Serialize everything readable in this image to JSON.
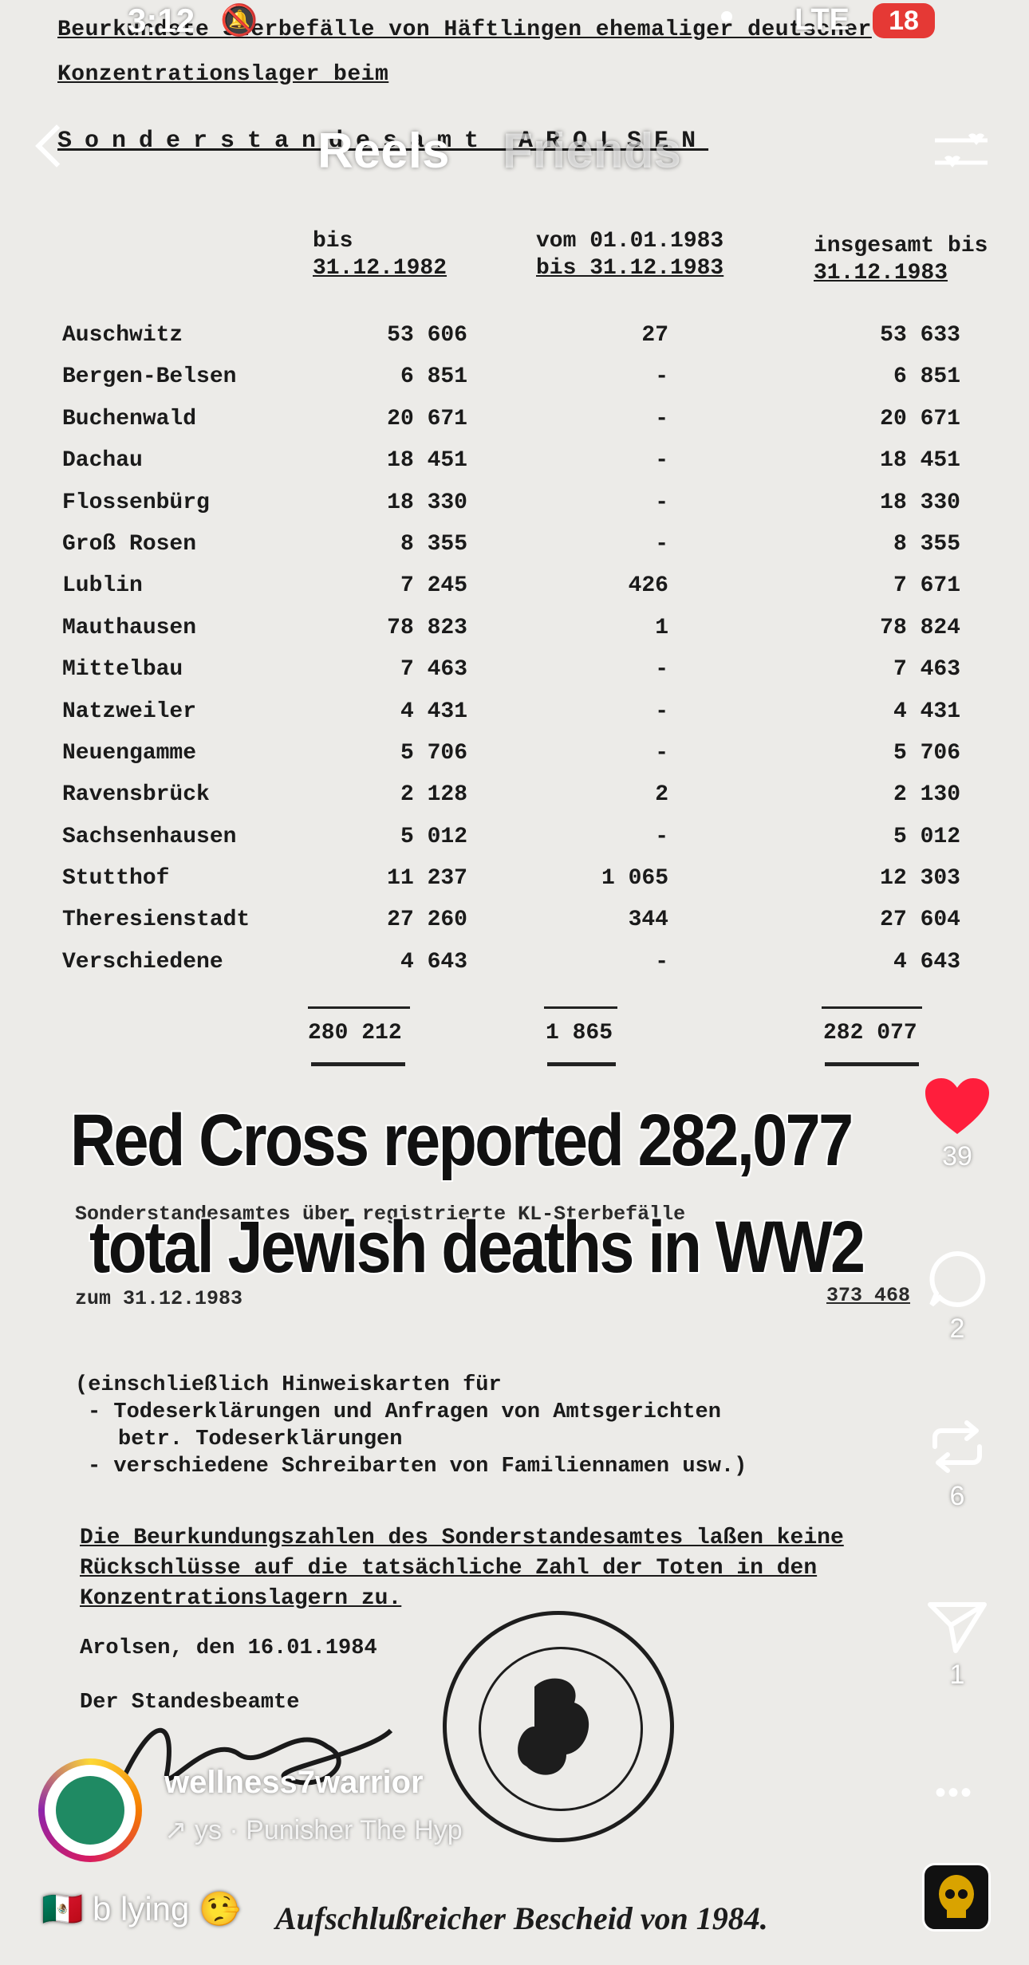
{
  "status_bar": {
    "time": "3:12",
    "network": "LTE",
    "battery": "18",
    "battery_color": "#e53935"
  },
  "nav": {
    "tab_reels": "Reels",
    "tab_friends": "Friends"
  },
  "document": {
    "header_line1": "Beurkundete Sterbefälle von Häftlingen ehemaliger deutscher",
    "header_line2": "Konzentrationslager beim",
    "header_line3": "Sonderstandesamt AROLSEN",
    "col_a": [
      "bis",
      "31.12.1982"
    ],
    "col_b": [
      "vom 01.01.1983",
      "bis 31.12.1983"
    ],
    "col_c": [
      "insgesamt bis",
      "31.12.1983"
    ],
    "rows": [
      {
        "name": "Auschwitz",
        "a": "53 606",
        "b": "27",
        "c": "53 633"
      },
      {
        "name": "Bergen-Belsen",
        "a": "6 851",
        "b": "-",
        "c": "6 851"
      },
      {
        "name": "Buchenwald",
        "a": "20 671",
        "b": "-",
        "c": "20 671"
      },
      {
        "name": "Dachau",
        "a": "18 451",
        "b": "-",
        "c": "18 451"
      },
      {
        "name": "Flossenbürg",
        "a": "18 330",
        "b": "-",
        "c": "18 330"
      },
      {
        "name": "Groß Rosen",
        "a": "8 355",
        "b": "-",
        "c": "8 355"
      },
      {
        "name": "Lublin",
        "a": "7 245",
        "b": "426",
        "c": "7 671"
      },
      {
        "name": "Mauthausen",
        "a": "78 823",
        "b": "1",
        "c": "78 824"
      },
      {
        "name": "Mittelbau",
        "a": "7 463",
        "b": "-",
        "c": "7 463"
      },
      {
        "name": "Natzweiler",
        "a": "4 431",
        "b": "-",
        "c": "4 431"
      },
      {
        "name": "Neuengamme",
        "a": "5 706",
        "b": "-",
        "c": "5 706"
      },
      {
        "name": "Ravensbrück",
        "a": "2 128",
        "b": "2",
        "c": "2 130"
      },
      {
        "name": "Sachsenhausen",
        "a": "5 012",
        "b": "-",
        "c": "5 012"
      },
      {
        "name": "Stutthof",
        "a": "11 237",
        "b": "1 065",
        "c": "12 303"
      },
      {
        "name": "Theresienstadt",
        "a": "27 260",
        "b": "344",
        "c": "27 604"
      },
      {
        "name": "Verschiedene",
        "a": "4 643",
        "b": "-",
        "c": "4 643"
      }
    ],
    "total_a": "280 212",
    "total_b": "1 865",
    "total_c": "282 077",
    "partial1": "Sonderstandesamtes über registrierte KL-Sterbefälle",
    "partial2": "zum 31.12.1983",
    "partial_total": "373 468",
    "incl_line1": "(einschließlich Hinweiskarten für",
    "incl_line2": "- Todeserklärungen und Anfragen von Amtsgerichten",
    "incl_line3": "betr. Todeserklärungen",
    "incl_line4": "- verschiedene Schreibarten von Familiennamen usw.)",
    "note_line1": "Die Beurkundungszahlen des Sonderstandesamtes laßen keine",
    "note_line2": "Rückschlüsse auf die tatsächliche Zahl der Toten in den",
    "note_line3": "Konzentrationslagern zu.",
    "place_date": "Arolsen, den 16.01.1984",
    "signer": "Der Standesbeamte",
    "bottom_caption": "Aufschlußreicher Bescheid von 1984."
  },
  "overlay_caption": {
    "line1": "Red Cross reported 282,077",
    "line2": "total Jewish deaths in WW2"
  },
  "actions": {
    "likes": "39",
    "comments": "2",
    "reposts": "6",
    "shares": "1",
    "like_color": "#ff1e3c"
  },
  "author": {
    "username": "wellness7warrior",
    "audio": "ys · Punisher     The Hyp"
  },
  "reply_bar": {
    "text": "b lying 🤥"
  }
}
